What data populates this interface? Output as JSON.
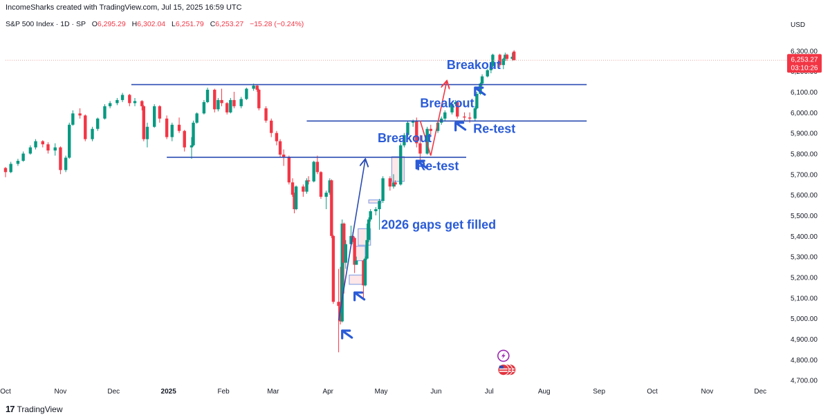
{
  "header": {
    "credit": "IncomeSharks created with TradingView.com, Jul 15, 2025 16:59 UTC"
  },
  "legend": {
    "symbol": "S&P 500 Index · 1D · SP",
    "open_label": "O",
    "open": "6,295.29",
    "high_label": "H",
    "high": "6,302.04",
    "low_label": "L",
    "low": "6,251.79",
    "close_label": "C",
    "close": "6,253.27",
    "change": "−15.28 (−0.24%)"
  },
  "price_axis": {
    "currency": "USD",
    "current_price": "6,253.27",
    "countdown": "03:10:26"
  },
  "footer": {
    "brand": "TradingView",
    "logo": "17"
  },
  "annotations": [
    {
      "text": "Breakout",
      "date": "2025-06-07",
      "price": 6210
    },
    {
      "text": "Breakout",
      "date": "2025-05-23",
      "price": 6025
    },
    {
      "text": "Breakout",
      "date": "2025-04-29",
      "price": 5855
    },
    {
      "text": "Re-test",
      "date": "2025-06-22",
      "price": 5900
    },
    {
      "text": "Re-test",
      "date": "2025-05-21",
      "price": 5720
    },
    {
      "text": "2026 gaps get filled",
      "date": "2025-05-01",
      "price": 5435
    }
  ],
  "chart_data": {
    "type": "candlestick",
    "title": "",
    "x_axis": {
      "tick_labels": [
        "Oct",
        "Nov",
        "Dec",
        "2025",
        "Feb",
        "Mar",
        "Apr",
        "May",
        "Jun",
        "Jul",
        "Aug",
        "Sep",
        "Oct",
        "Nov",
        "Dec"
      ],
      "tick_dates": [
        "2024-10-01",
        "2024-11-01",
        "2024-12-01",
        "2025-01-01",
        "2025-02-01",
        "2025-03-01",
        "2025-04-01",
        "2025-05-01",
        "2025-06-01",
        "2025-07-01",
        "2025-08-01",
        "2025-09-01",
        "2025-10-01",
        "2025-11-01",
        "2025-12-01"
      ],
      "range": [
        "2024-10-01",
        "2025-12-13"
      ]
    },
    "y_axis": {
      "ticks": [
        4700,
        4800,
        4900,
        5000,
        5100,
        5200,
        5300,
        5400,
        5500,
        5600,
        5700,
        5800,
        5900,
        6000,
        6100,
        6200,
        6300
      ],
      "tick_labels": [
        "4,700.00",
        "4,800.00",
        "4,900.00",
        "5,000.00",
        "5,100.00",
        "5,200.00",
        "5,300.00",
        "5,400.00",
        "5,500.00",
        "5,600.00",
        "5,700.00",
        "5,800.00",
        "5,900.00",
        "6,000.00",
        "6,100.00",
        "6,200.00",
        "6,300.00"
      ],
      "range": [
        4635,
        6395
      ],
      "scale": "linear"
    },
    "horizontal_lines": [
      {
        "price": 6135,
        "from": "2024-12-11",
        "to": "2025-08-25",
        "color": "#2a4cb2"
      },
      {
        "price": 5958,
        "from": "2025-03-20",
        "to": "2025-08-25",
        "color": "#2a4cb2"
      },
      {
        "price": 5782,
        "from": "2024-12-31",
        "to": "2025-06-18",
        "color": "#2a4cb2"
      }
    ],
    "current_price_line": {
      "price": 6253.27,
      "color": "#f23645"
    },
    "trend_lines": [
      {
        "from": [
          "2025-04-07",
          4990
        ],
        "to": [
          "2025-04-22",
          5770
        ],
        "color": "#2a4cb2",
        "arrow": true
      },
      {
        "from": [
          "2025-05-23",
          5960
        ],
        "to": [
          "2025-05-29",
          5790
        ],
        "color": "#f23645",
        "arrow": false
      },
      {
        "from": [
          "2025-05-29",
          5790
        ],
        "to": [
          "2025-06-07",
          6150
        ],
        "color": "#f23645",
        "arrow": true
      }
    ],
    "gap_boxes": [
      {
        "from": "2025-04-13",
        "to": "2025-04-22",
        "low": 5165,
        "high": 5210
      },
      {
        "from": "2025-04-16",
        "to": "2025-04-22",
        "low": 5280,
        "high": 5350
      },
      {
        "from": "2025-04-18",
        "to": "2025-04-25",
        "low": 5355,
        "high": 5435
      },
      {
        "from": "2025-04-24",
        "to": "2025-05-01",
        "low": 5560,
        "high": 5575
      },
      {
        "from": "2025-05-07",
        "to": "2025-05-14",
        "low": 5665,
        "high": 5785
      }
    ],
    "pointer_arrows": [
      {
        "date": "2025-06-23",
        "price": 6120
      },
      {
        "date": "2025-06-12",
        "price": 5950
      },
      {
        "date": "2025-05-21",
        "price": 5765
      },
      {
        "date": "2025-04-16",
        "price": 5125
      },
      {
        "date": "2025-04-09",
        "price": 4940
      }
    ],
    "event_icons": [
      {
        "icon": "lightning-icon",
        "date": "2025-07-09",
        "price": 4818
      },
      {
        "icon": "us-flag-icon",
        "date": "2025-07-09",
        "price": 4750
      }
    ],
    "series": [
      {
        "name": "S&P 500 Index",
        "up_color": "#089981",
        "down_color": "#f23645",
        "ohlc": [
          [
            "2024-10-01",
            5730,
            5735,
            5685,
            5710
          ],
          [
            "2024-10-04",
            5710,
            5760,
            5705,
            5750
          ],
          [
            "2024-10-08",
            5750,
            5775,
            5740,
            5765
          ],
          [
            "2024-10-11",
            5765,
            5810,
            5760,
            5800
          ],
          [
            "2024-10-15",
            5800,
            5840,
            5795,
            5830
          ],
          [
            "2024-10-18",
            5830,
            5870,
            5820,
            5860
          ],
          [
            "2024-10-22",
            5860,
            5865,
            5830,
            5845
          ],
          [
            "2024-10-25",
            5845,
            5855,
            5800,
            5815
          ],
          [
            "2024-10-29",
            5815,
            5850,
            5790,
            5830
          ],
          [
            "2024-11-01",
            5830,
            5835,
            5700,
            5720
          ],
          [
            "2024-11-04",
            5720,
            5790,
            5710,
            5780
          ],
          [
            "2024-11-06",
            5780,
            5950,
            5775,
            5940
          ],
          [
            "2024-11-08",
            5940,
            6010,
            5935,
            5995
          ],
          [
            "2024-11-12",
            5995,
            6020,
            5970,
            5985
          ],
          [
            "2024-11-15",
            5985,
            5990,
            5860,
            5870
          ],
          [
            "2024-11-19",
            5870,
            5930,
            5860,
            5920
          ],
          [
            "2024-11-22",
            5920,
            5975,
            5910,
            5970
          ],
          [
            "2024-11-26",
            5970,
            6040,
            5965,
            6030
          ],
          [
            "2024-11-29",
            6030,
            6055,
            6020,
            6045
          ],
          [
            "2024-12-03",
            6045,
            6070,
            6035,
            6060
          ],
          [
            "2024-12-06",
            6060,
            6095,
            6050,
            6085
          ],
          [
            "2024-12-10",
            6085,
            6090,
            6030,
            6045
          ],
          [
            "2024-12-13",
            6045,
            6070,
            6030,
            6055
          ],
          [
            "2024-12-17",
            6055,
            6060,
            6010,
            6030
          ],
          [
            "2024-12-18",
            6030,
            6035,
            5860,
            5870
          ],
          [
            "2024-12-20",
            5870,
            5950,
            5830,
            5930
          ],
          [
            "2024-12-24",
            5930,
            6040,
            5925,
            6030
          ],
          [
            "2024-12-27",
            6030,
            6035,
            5950,
            5970
          ],
          [
            "2024-12-31",
            5970,
            5985,
            5870,
            5880
          ],
          [
            "2025-01-03",
            5880,
            5950,
            5860,
            5940
          ],
          [
            "2025-01-07",
            5940,
            5975,
            5900,
            5910
          ],
          [
            "2025-01-10",
            5910,
            5915,
            5810,
            5830
          ],
          [
            "2025-01-14",
            5830,
            5880,
            5775,
            5840
          ],
          [
            "2025-01-15",
            5840,
            5960,
            5835,
            5950
          ],
          [
            "2025-01-17",
            5950,
            6000,
            5945,
            5995
          ],
          [
            "2025-01-21",
            5995,
            6060,
            5990,
            6050
          ],
          [
            "2025-01-23",
            6050,
            6120,
            6045,
            6110
          ],
          [
            "2025-01-27",
            6110,
            6115,
            6000,
            6015
          ],
          [
            "2025-01-29",
            6015,
            6070,
            6005,
            6060
          ],
          [
            "2025-01-31",
            6060,
            6115,
            6030,
            6045
          ],
          [
            "2025-02-03",
            6045,
            6050,
            5990,
            6000
          ],
          [
            "2025-02-05",
            6000,
            6070,
            5995,
            6060
          ],
          [
            "2025-02-07",
            6060,
            6100,
            6020,
            6030
          ],
          [
            "2025-02-11",
            6030,
            6075,
            6020,
            6065
          ],
          [
            "2025-02-14",
            6065,
            6120,
            6060,
            6115
          ],
          [
            "2025-02-18",
            6115,
            6140,
            6105,
            6130
          ],
          [
            "2025-02-20",
            6130,
            6135,
            6100,
            6110
          ],
          [
            "2025-02-21",
            6110,
            6115,
            6010,
            6020
          ],
          [
            "2025-02-25",
            6020,
            6030,
            5950,
            5960
          ],
          [
            "2025-02-28",
            5960,
            5970,
            5880,
            5900
          ],
          [
            "2025-03-03",
            5900,
            5910,
            5840,
            5860
          ],
          [
            "2025-03-05",
            5860,
            5870,
            5780,
            5795
          ],
          [
            "2025-03-07",
            5795,
            5820,
            5740,
            5780
          ],
          [
            "2025-03-10",
            5780,
            5790,
            5650,
            5660
          ],
          [
            "2025-03-12",
            5660,
            5680,
            5590,
            5600
          ],
          [
            "2025-03-13",
            5600,
            5610,
            5510,
            5530
          ],
          [
            "2025-03-14",
            5530,
            5645,
            5525,
            5640
          ],
          [
            "2025-03-18",
            5640,
            5650,
            5590,
            5615
          ],
          [
            "2025-03-20",
            5615,
            5680,
            5605,
            5670
          ],
          [
            "2025-03-21",
            5670,
            5690,
            5650,
            5665
          ],
          [
            "2025-03-24",
            5665,
            5765,
            5660,
            5760
          ],
          [
            "2025-03-26",
            5760,
            5790,
            5700,
            5710
          ],
          [
            "2025-03-28",
            5710,
            5715,
            5580,
            5590
          ],
          [
            "2025-03-31",
            5590,
            5620,
            5530,
            5610
          ],
          [
            "2025-04-02",
            5610,
            5680,
            5600,
            5670
          ],
          [
            "2025-04-03",
            5670,
            5675,
            5390,
            5400
          ],
          [
            "2025-04-04",
            5400,
            5405,
            5070,
            5080
          ],
          [
            "2025-04-07",
            5080,
            5240,
            4835,
            5060
          ],
          [
            "2025-04-08",
            5060,
            5250,
            4970,
            4985
          ],
          [
            "2025-04-09",
            4985,
            5480,
            4980,
            5460
          ],
          [
            "2025-04-10",
            5460,
            5465,
            5120,
            5270
          ],
          [
            "2025-04-11",
            5270,
            5380,
            5240,
            5360
          ],
          [
            "2025-04-14",
            5360,
            5450,
            5350,
            5400
          ],
          [
            "2025-04-15",
            5400,
            5420,
            5370,
            5390
          ],
          [
            "2025-04-16",
            5390,
            5395,
            5220,
            5260
          ],
          [
            "2025-04-17",
            5260,
            5300,
            5260,
            5280
          ],
          [
            "2025-04-21",
            5280,
            5285,
            5100,
            5160
          ],
          [
            "2025-04-22",
            5160,
            5300,
            5155,
            5290
          ],
          [
            "2025-04-23",
            5290,
            5460,
            5285,
            5380
          ],
          [
            "2025-04-24",
            5380,
            5490,
            5370,
            5480
          ],
          [
            "2025-04-25",
            5480,
            5530,
            5470,
            5520
          ],
          [
            "2025-04-28",
            5520,
            5540,
            5500,
            5530
          ],
          [
            "2025-04-30",
            5530,
            5580,
            5430,
            5570
          ],
          [
            "2025-05-02",
            5570,
            5690,
            5560,
            5680
          ],
          [
            "2025-05-06",
            5680,
            5690,
            5620,
            5640
          ],
          [
            "2025-05-08",
            5640,
            5700,
            5630,
            5660
          ],
          [
            "2025-05-09",
            5660,
            5670,
            5640,
            5650
          ],
          [
            "2025-05-12",
            5650,
            5850,
            5645,
            5840
          ],
          [
            "2025-05-14",
            5840,
            5900,
            5830,
            5890
          ],
          [
            "2025-05-16",
            5890,
            5960,
            5880,
            5950
          ],
          [
            "2025-05-19",
            5950,
            5965,
            5930,
            5960
          ],
          [
            "2025-05-21",
            5960,
            5975,
            5830,
            5850
          ],
          [
            "2025-05-23",
            5850,
            5890,
            5760,
            5800
          ],
          [
            "2025-05-27",
            5800,
            5930,
            5795,
            5920
          ],
          [
            "2025-05-29",
            5920,
            5940,
            5880,
            5910
          ],
          [
            "2025-06-02",
            5910,
            5960,
            5900,
            5950
          ],
          [
            "2025-06-04",
            5950,
            5980,
            5940,
            5970
          ],
          [
            "2025-06-06",
            5970,
            6010,
            5960,
            6000
          ],
          [
            "2025-06-10",
            6000,
            6050,
            5990,
            6040
          ],
          [
            "2025-06-12",
            6040,
            6060,
            6030,
            6050
          ],
          [
            "2025-06-13",
            6050,
            6055,
            5970,
            5980
          ],
          [
            "2025-06-17",
            5980,
            6000,
            5960,
            5975
          ],
          [
            "2025-06-20",
            5975,
            6000,
            5950,
            5970
          ],
          [
            "2025-06-23",
            5970,
            6030,
            5960,
            6020
          ],
          [
            "2025-06-24",
            6020,
            6100,
            6015,
            6090
          ],
          [
            "2025-06-26",
            6090,
            6145,
            6085,
            6140
          ],
          [
            "2025-06-27",
            6140,
            6185,
            6130,
            6175
          ],
          [
            "2025-06-30",
            6175,
            6210,
            6170,
            6205
          ],
          [
            "2025-07-02",
            6205,
            6230,
            6190,
            6225
          ],
          [
            "2025-07-03",
            6225,
            6285,
            6220,
            6280
          ],
          [
            "2025-07-07",
            6280,
            6285,
            6220,
            6230
          ],
          [
            "2025-07-09",
            6230,
            6265,
            6210,
            6260
          ],
          [
            "2025-07-10",
            6260,
            6290,
            6250,
            6280
          ],
          [
            "2025-07-11",
            6280,
            6285,
            6250,
            6260
          ],
          [
            "2025-07-14",
            6260,
            6290,
            6250,
            6270
          ],
          [
            "2025-07-15",
            6295.29,
            6302.04,
            6251.79,
            6253.27
          ]
        ]
      }
    ]
  }
}
